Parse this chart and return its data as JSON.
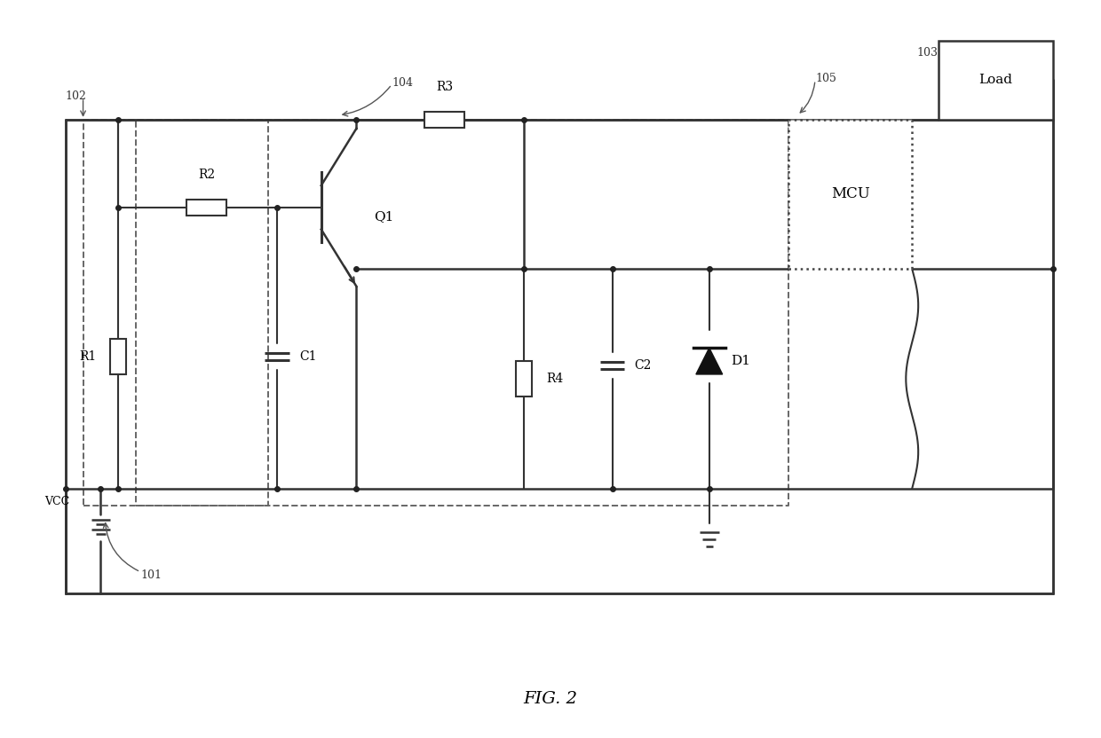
{
  "title": "FIG. 2",
  "background_color": "#ffffff",
  "line_color": "#444444",
  "fig_width": 12.4,
  "fig_height": 8.32,
  "components": {
    "VCC_label": "VCC",
    "R1_label": "R1",
    "R2_label": "R2",
    "R3_label": "R3",
    "R4_label": "R4",
    "C1_label": "C1",
    "C2_label": "C2",
    "D1_label": "D1",
    "Q1_label": "Q1",
    "MCU_label": "MCU",
    "Load_label": "Load",
    "label_101": "101",
    "label_102": "102",
    "label_103": "103",
    "label_104": "104",
    "label_105": "105"
  }
}
